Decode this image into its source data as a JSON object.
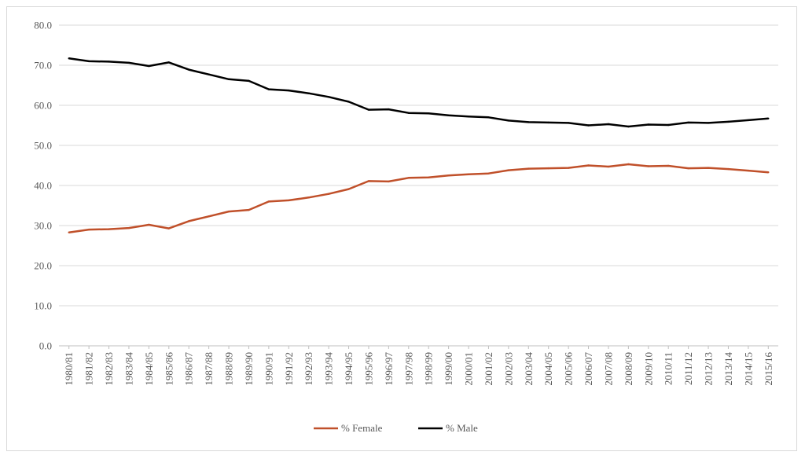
{
  "chart_data": {
    "type": "line",
    "categories": [
      "1980/81",
      "1981/82",
      "1982/83",
      "1983/84",
      "1984/85",
      "1985/86",
      "1986/87",
      "1987/88",
      "1988/89",
      "1989/90",
      "1990/91",
      "1991/92",
      "1992/93",
      "1993/94",
      "1994/95",
      "1995/96",
      "1996/97",
      "1997/98",
      "1998/99",
      "1999/00",
      "2000/01",
      "2001/02",
      "2002/03",
      "2003/04",
      "2004/05",
      "2005/06",
      "2006/07",
      "2007/08",
      "2008/09",
      "2009/10",
      "2010/11",
      "2011/12",
      "2012/13",
      "2013/14",
      "2014/15",
      "2015/16"
    ],
    "series": [
      {
        "name": "% Female",
        "color": "#c0502a",
        "values": [
          28.3,
          29.0,
          29.1,
          29.4,
          30.2,
          29.3,
          31.1,
          32.3,
          33.5,
          33.9,
          36.0,
          36.3,
          37.0,
          37.9,
          39.1,
          41.1,
          41.0,
          41.9,
          42.0,
          42.5,
          42.8,
          43.0,
          43.8,
          44.2,
          44.3,
          44.4,
          45.0,
          44.7,
          45.3,
          44.8,
          44.9,
          44.3,
          44.4,
          44.1,
          43.7,
          43.3
        ]
      },
      {
        "name": "% Male",
        "color": "#000000",
        "values": [
          71.7,
          71.0,
          70.9,
          70.6,
          69.8,
          70.7,
          68.9,
          67.7,
          66.5,
          66.1,
          64.0,
          63.7,
          63.0,
          62.1,
          60.9,
          58.9,
          59.0,
          58.1,
          58.0,
          57.5,
          57.2,
          57.0,
          56.2,
          55.8,
          55.7,
          55.6,
          55.0,
          55.3,
          54.7,
          55.2,
          55.1,
          55.7,
          55.6,
          55.9,
          56.3,
          56.7
        ]
      }
    ],
    "yticks": [
      "0.0",
      "10.0",
      "20.0",
      "30.0",
      "40.0",
      "50.0",
      "60.0",
      "70.0",
      "80.0"
    ],
    "ylim": [
      0,
      80
    ],
    "grid": true,
    "legend_position": "bottom"
  }
}
